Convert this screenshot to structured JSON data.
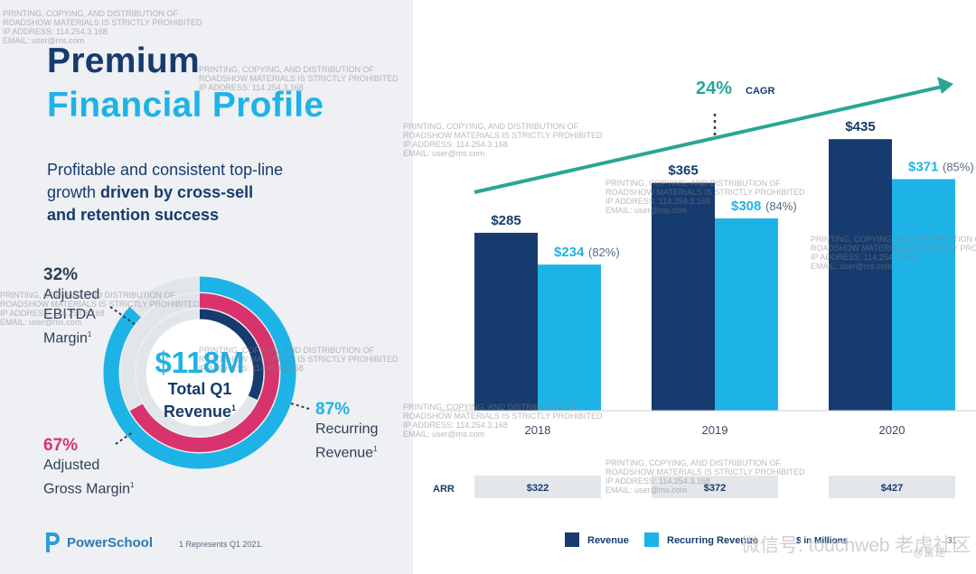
{
  "slide": {
    "title_line1": "Premium",
    "title_line2": "Financial Profile",
    "subtitle_line1": "Profitable and consistent top-line",
    "subtitle_line2_plain": "growth ",
    "subtitle_line2_bold": "driven by cross-sell",
    "subtitle_line3_bold": "and retention success",
    "footnote": "1  Represents Q1 2021.",
    "logo_text": "PowerSchool",
    "page_number": "31"
  },
  "donut": {
    "center_value": "$118M",
    "center_label1": "Total Q1",
    "center_label2": "Revenue",
    "center_sup": "1",
    "stats": {
      "ebitda": {
        "pct": "32%",
        "l1": "Adjusted",
        "l2": "EBITDA",
        "l3": "Margin",
        "sup": "1",
        "value": 32,
        "color": "#163b6e"
      },
      "gross": {
        "pct": "67%",
        "l1": "Adjusted",
        "l2": "Gross Margin",
        "sup": "1",
        "value": 67,
        "color": "#d9336d"
      },
      "recurring": {
        "pct": "87%",
        "l1": "Recurring",
        "l2": "Revenue",
        "sup": "1",
        "value": 87,
        "color": "#1eb3e6"
      }
    }
  },
  "chart_data": {
    "type": "bar",
    "categories": [
      "2018",
      "2019",
      "2020"
    ],
    "series": [
      {
        "name": "Revenue",
        "values": [
          285,
          365,
          435
        ],
        "color": "#163b6e",
        "labels": [
          "$285",
          "$365",
          "$435"
        ]
      },
      {
        "name": "Recurring Revenue",
        "values": [
          234,
          308,
          371
        ],
        "color": "#1eb3e6",
        "labels": [
          "$234",
          "$308",
          "$371"
        ],
        "pct_labels": [
          "(82%)",
          "(84%)",
          "(85%)"
        ]
      }
    ],
    "cagr_value": "24%",
    "cagr_label": "CAGR",
    "arr_label": "ARR",
    "arr_values": [
      "$322",
      "$372",
      "$427"
    ],
    "units_note": "$ in Millions",
    "ylim": [
      0,
      470
    ]
  },
  "watermark": {
    "line1": "PRINTING, COPYING, AND DISTRIBUTION OF",
    "line2": "ROADSHOW MATERIALS IS STRICTLY PROHIBITED",
    "line3": "IP ADDRESS: 114.254.3.168",
    "line4": "EMAIL: user@ms.com"
  },
  "overlay": {
    "text": "微信号: touchweb 老虎社区",
    "handle": "@雷递"
  }
}
